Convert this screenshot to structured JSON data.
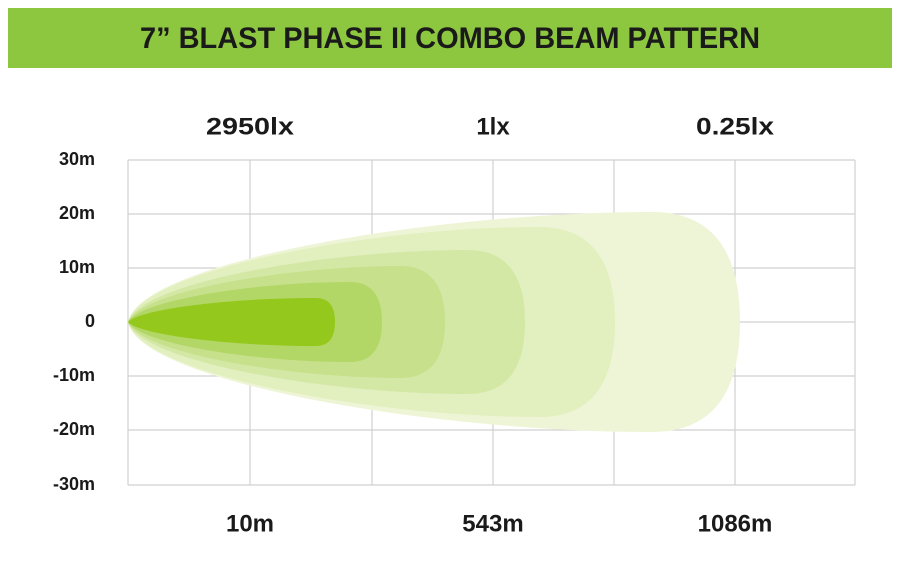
{
  "header": {
    "title": "7” BLAST PHASE II COMBO BEAM PATTERN"
  },
  "lux_labels": [
    "2950lx",
    "1lx",
    "0.25lx"
  ],
  "y_labels": [
    "30m",
    "20m",
    "10m",
    "0",
    "-10m",
    "-20m",
    "-30m"
  ],
  "distance_labels": [
    "10m",
    "543m",
    "1086m"
  ]
}
